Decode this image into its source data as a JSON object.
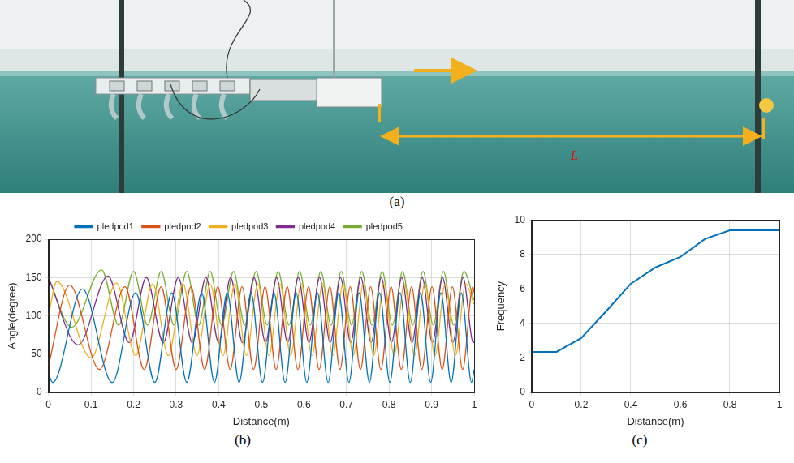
{
  "photo": {
    "annotation": "L",
    "caption": "(a)"
  },
  "chart_data": [
    {
      "type": "line",
      "caption": "(b)",
      "xlabel": "Distance(m)",
      "ylabel": "Angle(degree)",
      "xlim": [
        0,
        1
      ],
      "xticks": [
        0,
        0.1,
        0.2,
        0.3,
        0.4,
        0.5,
        0.6,
        0.7,
        0.8,
        0.9,
        1
      ],
      "ylim": [
        0,
        200
      ],
      "yticks": [
        0,
        50,
        100,
        150,
        200
      ],
      "grid": true,
      "legend": "top",
      "series": [
        {
          "name": "pledpod1",
          "color": "#0072BD",
          "x": [
            0,
            0.01,
            0.08,
            0.15,
            0.205,
            0.25,
            0.29,
            0.325,
            0.36,
            0.39,
            0.42,
            0.448,
            0.476,
            0.503,
            0.53,
            0.556,
            0.582,
            0.607,
            0.632,
            0.657,
            0.682,
            0.706,
            0.73,
            0.754,
            0.778,
            0.802,
            0.826,
            0.85,
            0.874,
            0.898,
            0.922,
            0.946,
            0.97,
            0.994,
            1
          ],
          "values": [
            25,
            13,
            135,
            13,
            130,
            13,
            130,
            13,
            130,
            13,
            130,
            13,
            130,
            13,
            130,
            13,
            130,
            13,
            130,
            13,
            130,
            13,
            130,
            13,
            130,
            13,
            130,
            13,
            130,
            13,
            130,
            13,
            130,
            13,
            30
          ]
        },
        {
          "name": "pledpod2",
          "color": "#D95319",
          "x": [
            0,
            0.05,
            0.12,
            0.18,
            0.225,
            0.265,
            0.3,
            0.335,
            0.367,
            0.398,
            0.427,
            0.455,
            0.482,
            0.509,
            0.535,
            0.561,
            0.586,
            0.611,
            0.636,
            0.661,
            0.685,
            0.709,
            0.733,
            0.757,
            0.781,
            0.805,
            0.829,
            0.853,
            0.877,
            0.901,
            0.925,
            0.949,
            0.973,
            0.997,
            1
          ],
          "values": [
            35,
            140,
            30,
            138,
            30,
            138,
            30,
            138,
            30,
            138,
            30,
            138,
            30,
            138,
            30,
            138,
            30,
            138,
            30,
            138,
            30,
            138,
            30,
            138,
            30,
            138,
            30,
            138,
            30,
            138,
            30,
            138,
            30,
            138,
            130
          ]
        },
        {
          "name": "pledpod3",
          "color": "#EDB120",
          "x": [
            0,
            0.02,
            0.1,
            0.16,
            0.205,
            0.245,
            0.282,
            0.316,
            0.349,
            0.38,
            0.41,
            0.438,
            0.465,
            0.492,
            0.518,
            0.544,
            0.569,
            0.594,
            0.619,
            0.644,
            0.668,
            0.692,
            0.716,
            0.74,
            0.764,
            0.788,
            0.812,
            0.836,
            0.86,
            0.884,
            0.908,
            0.932,
            0.956,
            0.98,
            1
          ],
          "values": [
            100,
            145,
            45,
            143,
            48,
            142,
            48,
            142,
            48,
            142,
            48,
            142,
            48,
            142,
            48,
            142,
            48,
            142,
            48,
            142,
            48,
            142,
            48,
            142,
            48,
            142,
            48,
            142,
            48,
            142,
            48,
            142,
            48,
            142,
            115
          ]
        },
        {
          "name": "pledpod4",
          "color": "#7E2F8E",
          "x": [
            0,
            0.07,
            0.14,
            0.19,
            0.23,
            0.27,
            0.305,
            0.338,
            0.37,
            0.4,
            0.428,
            0.456,
            0.483,
            0.51,
            0.536,
            0.562,
            0.587,
            0.612,
            0.637,
            0.662,
            0.686,
            0.71,
            0.734,
            0.758,
            0.782,
            0.806,
            0.83,
            0.854,
            0.878,
            0.902,
            0.926,
            0.95,
            0.974,
            0.998,
            1
          ],
          "values": [
            150,
            62,
            152,
            65,
            150,
            65,
            150,
            65,
            150,
            65,
            150,
            65,
            150,
            65,
            150,
            65,
            150,
            65,
            150,
            65,
            150,
            65,
            150,
            65,
            150,
            65,
            150,
            65,
            150,
            65,
            150,
            65,
            150,
            65,
            67
          ]
        },
        {
          "name": "pledpod5",
          "color": "#77AC30",
          "x": [
            0,
            0.055,
            0.125,
            0.165,
            0.2,
            0.233,
            0.265,
            0.295,
            0.325,
            0.353,
            0.38,
            0.407,
            0.435,
            0.461,
            0.488,
            0.514,
            0.54,
            0.565,
            0.59,
            0.615,
            0.64,
            0.664,
            0.688,
            0.712,
            0.736,
            0.76,
            0.784,
            0.808,
            0.832,
            0.856,
            0.88,
            0.904,
            0.928,
            0.952,
            0.976,
            1
          ],
          "values": [
            150,
            85,
            160,
            88,
            158,
            88,
            158,
            88,
            158,
            88,
            158,
            88,
            158,
            88,
            158,
            88,
            158,
            88,
            158,
            88,
            158,
            88,
            158,
            88,
            158,
            88,
            158,
            88,
            158,
            88,
            158,
            88,
            158,
            88,
            158,
            120
          ]
        }
      ]
    },
    {
      "type": "line",
      "caption": "(c)",
      "xlabel": "Distance(m)",
      "ylabel": "Frequency",
      "x": [
        0,
        0.1,
        0.2,
        0.3,
        0.4,
        0.5,
        0.6,
        0.7,
        0.8,
        0.9,
        1
      ],
      "values": [
        2.35,
        2.35,
        3.15,
        4.7,
        6.3,
        7.25,
        7.85,
        8.9,
        9.4,
        9.4,
        9.4
      ],
      "color": "#0072BD",
      "xlim": [
        0,
        1
      ],
      "xticks": [
        0,
        0.2,
        0.4,
        0.6,
        0.8,
        1
      ],
      "ylim": [
        0,
        10
      ],
      "yticks": [
        0,
        2,
        4,
        6,
        8,
        10
      ],
      "grid": true
    }
  ]
}
